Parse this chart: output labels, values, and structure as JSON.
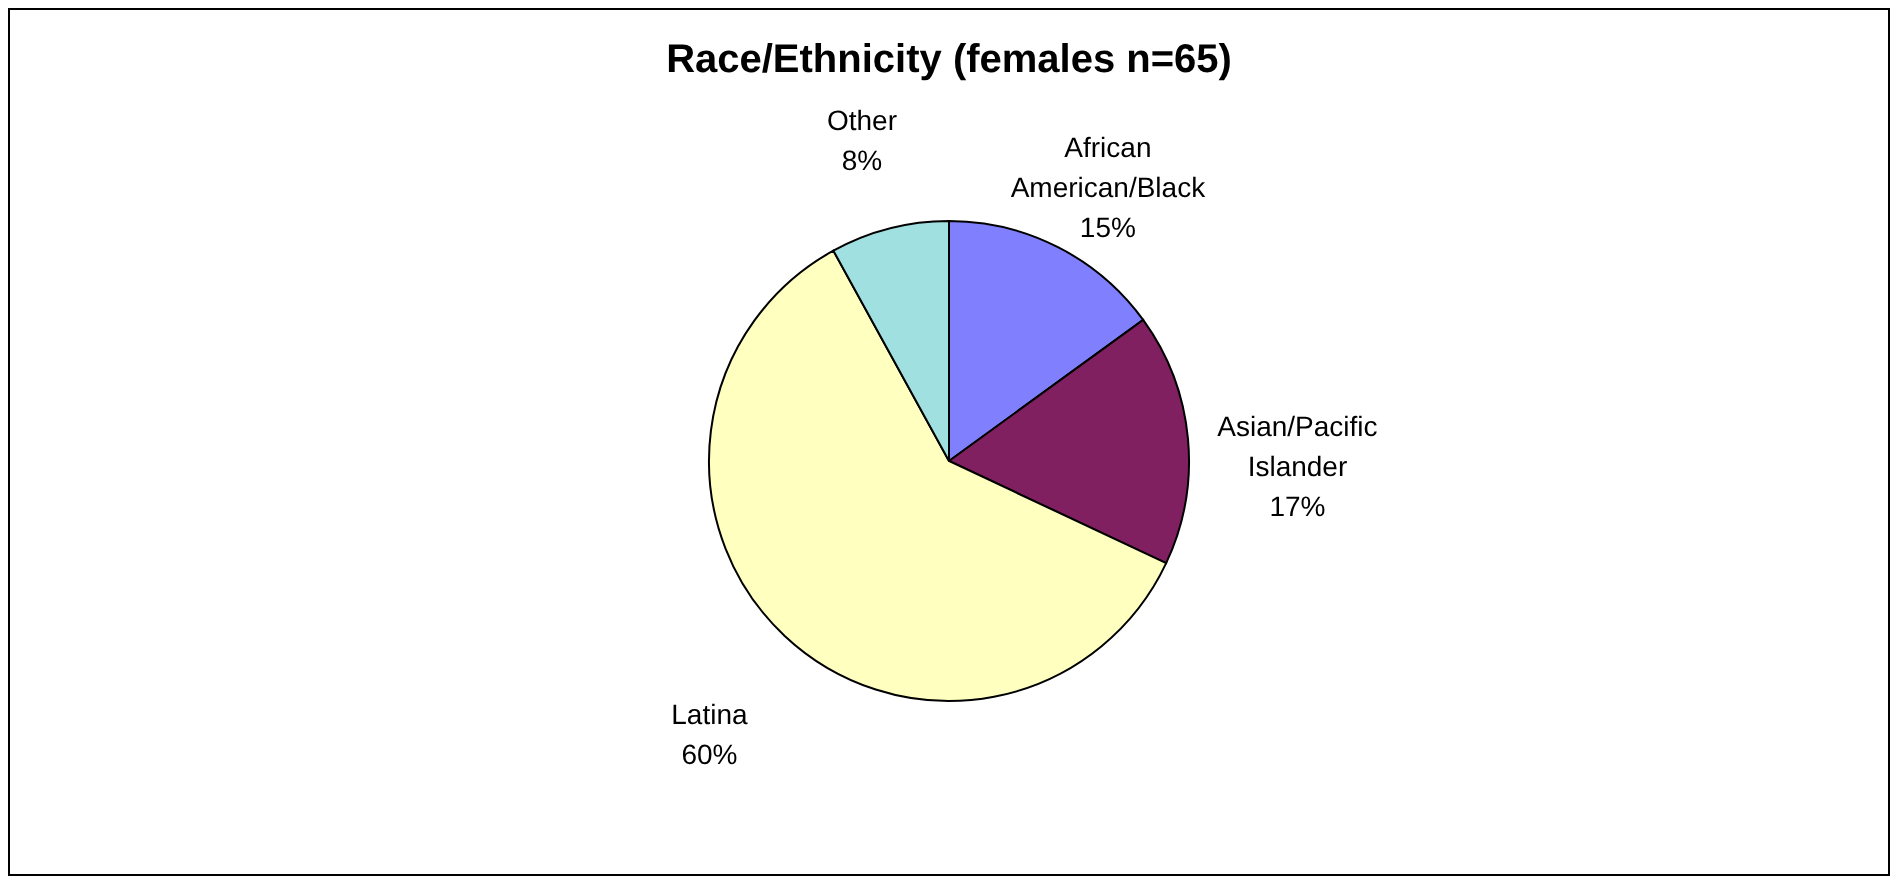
{
  "chart_data": {
    "type": "pie",
    "title": "Race/Ethnicity (females n=65)",
    "categories": [
      "African American/Black",
      "Asian/Pacific Islander",
      "Latina",
      "Other"
    ],
    "values": [
      15,
      17,
      60,
      8
    ],
    "colors": [
      "#8080ff",
      "#802060",
      "#ffffc0",
      "#a0e0e0"
    ],
    "value_labels": [
      "15%",
      "17%",
      "60%",
      "8%"
    ],
    "legend": false
  }
}
